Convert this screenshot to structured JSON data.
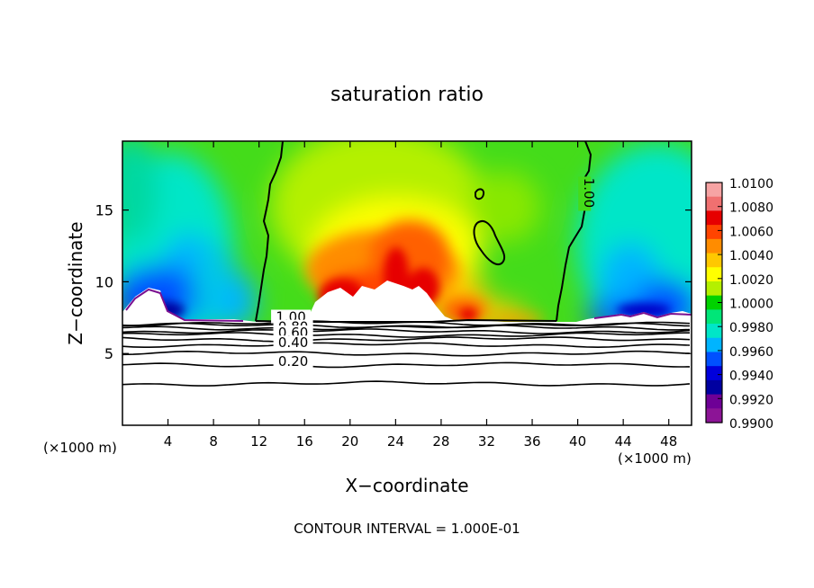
{
  "chart_data": {
    "type": "heatmap",
    "title": "saturation ratio",
    "xlabel": "X−coordinate",
    "ylabel": "Z−coordinate",
    "x_unit_left": "(×1000 m)",
    "x_unit_right": "(×1000 m)",
    "xlim": [
      0,
      50
    ],
    "ylim": [
      0,
      19.8
    ],
    "xticks": [
      4,
      8,
      12,
      16,
      20,
      24,
      28,
      32,
      36,
      40,
      44,
      48
    ],
    "yticks": [
      5,
      10,
      15
    ],
    "colorbar": {
      "ticks": [
        "1.0100",
        "1.0080",
        "1.0060",
        "1.0040",
        "1.0020",
        "1.0000",
        "0.9980",
        "0.9960",
        "0.9940",
        "0.9920",
        "0.9900"
      ],
      "range": [
        0.99,
        1.01
      ],
      "colors": [
        "#f6a3a3",
        "#f07070",
        "#e60000",
        "#ff4400",
        "#ff8c00",
        "#ffc800",
        "#ffff00",
        "#b4f000",
        "#00d200",
        "#00e678",
        "#00e6c8",
        "#00b4ff",
        "#0050ff",
        "#0000dc",
        "#0000a0",
        "#6e0096",
        "#8c1496"
      ]
    },
    "contour_labels": [
      {
        "text": "1.00",
        "x": 14.8,
        "z": 7.3
      },
      {
        "text": "0.80",
        "x": 15.0,
        "z": 6.6
      },
      {
        "text": "0.60",
        "x": 15.0,
        "z": 6.2
      },
      {
        "text": "0.40",
        "x": 15.0,
        "z": 5.5
      },
      {
        "text": "0.20",
        "x": 15.0,
        "z": 4.2
      },
      {
        "text": "1.00",
        "x": 40.6,
        "z": 16.2
      }
    ],
    "lower_contours": [
      {
        "level": 1.0,
        "z": 7.1
      },
      {
        "level": 0.9,
        "z": 6.95
      },
      {
        "level": 0.8,
        "z": 6.8
      },
      {
        "level": 0.7,
        "z": 6.55
      },
      {
        "level": 0.6,
        "z": 6.3
      },
      {
        "level": 0.5,
        "z": 6.0
      },
      {
        "level": 0.4,
        "z": 5.6
      },
      {
        "level": 0.3,
        "z": 5.0
      },
      {
        "level": 0.2,
        "z": 4.2
      },
      {
        "level": 0.1,
        "z": 2.9
      }
    ],
    "footer": "CONTOUR INTERVAL = 1.000E-01"
  }
}
